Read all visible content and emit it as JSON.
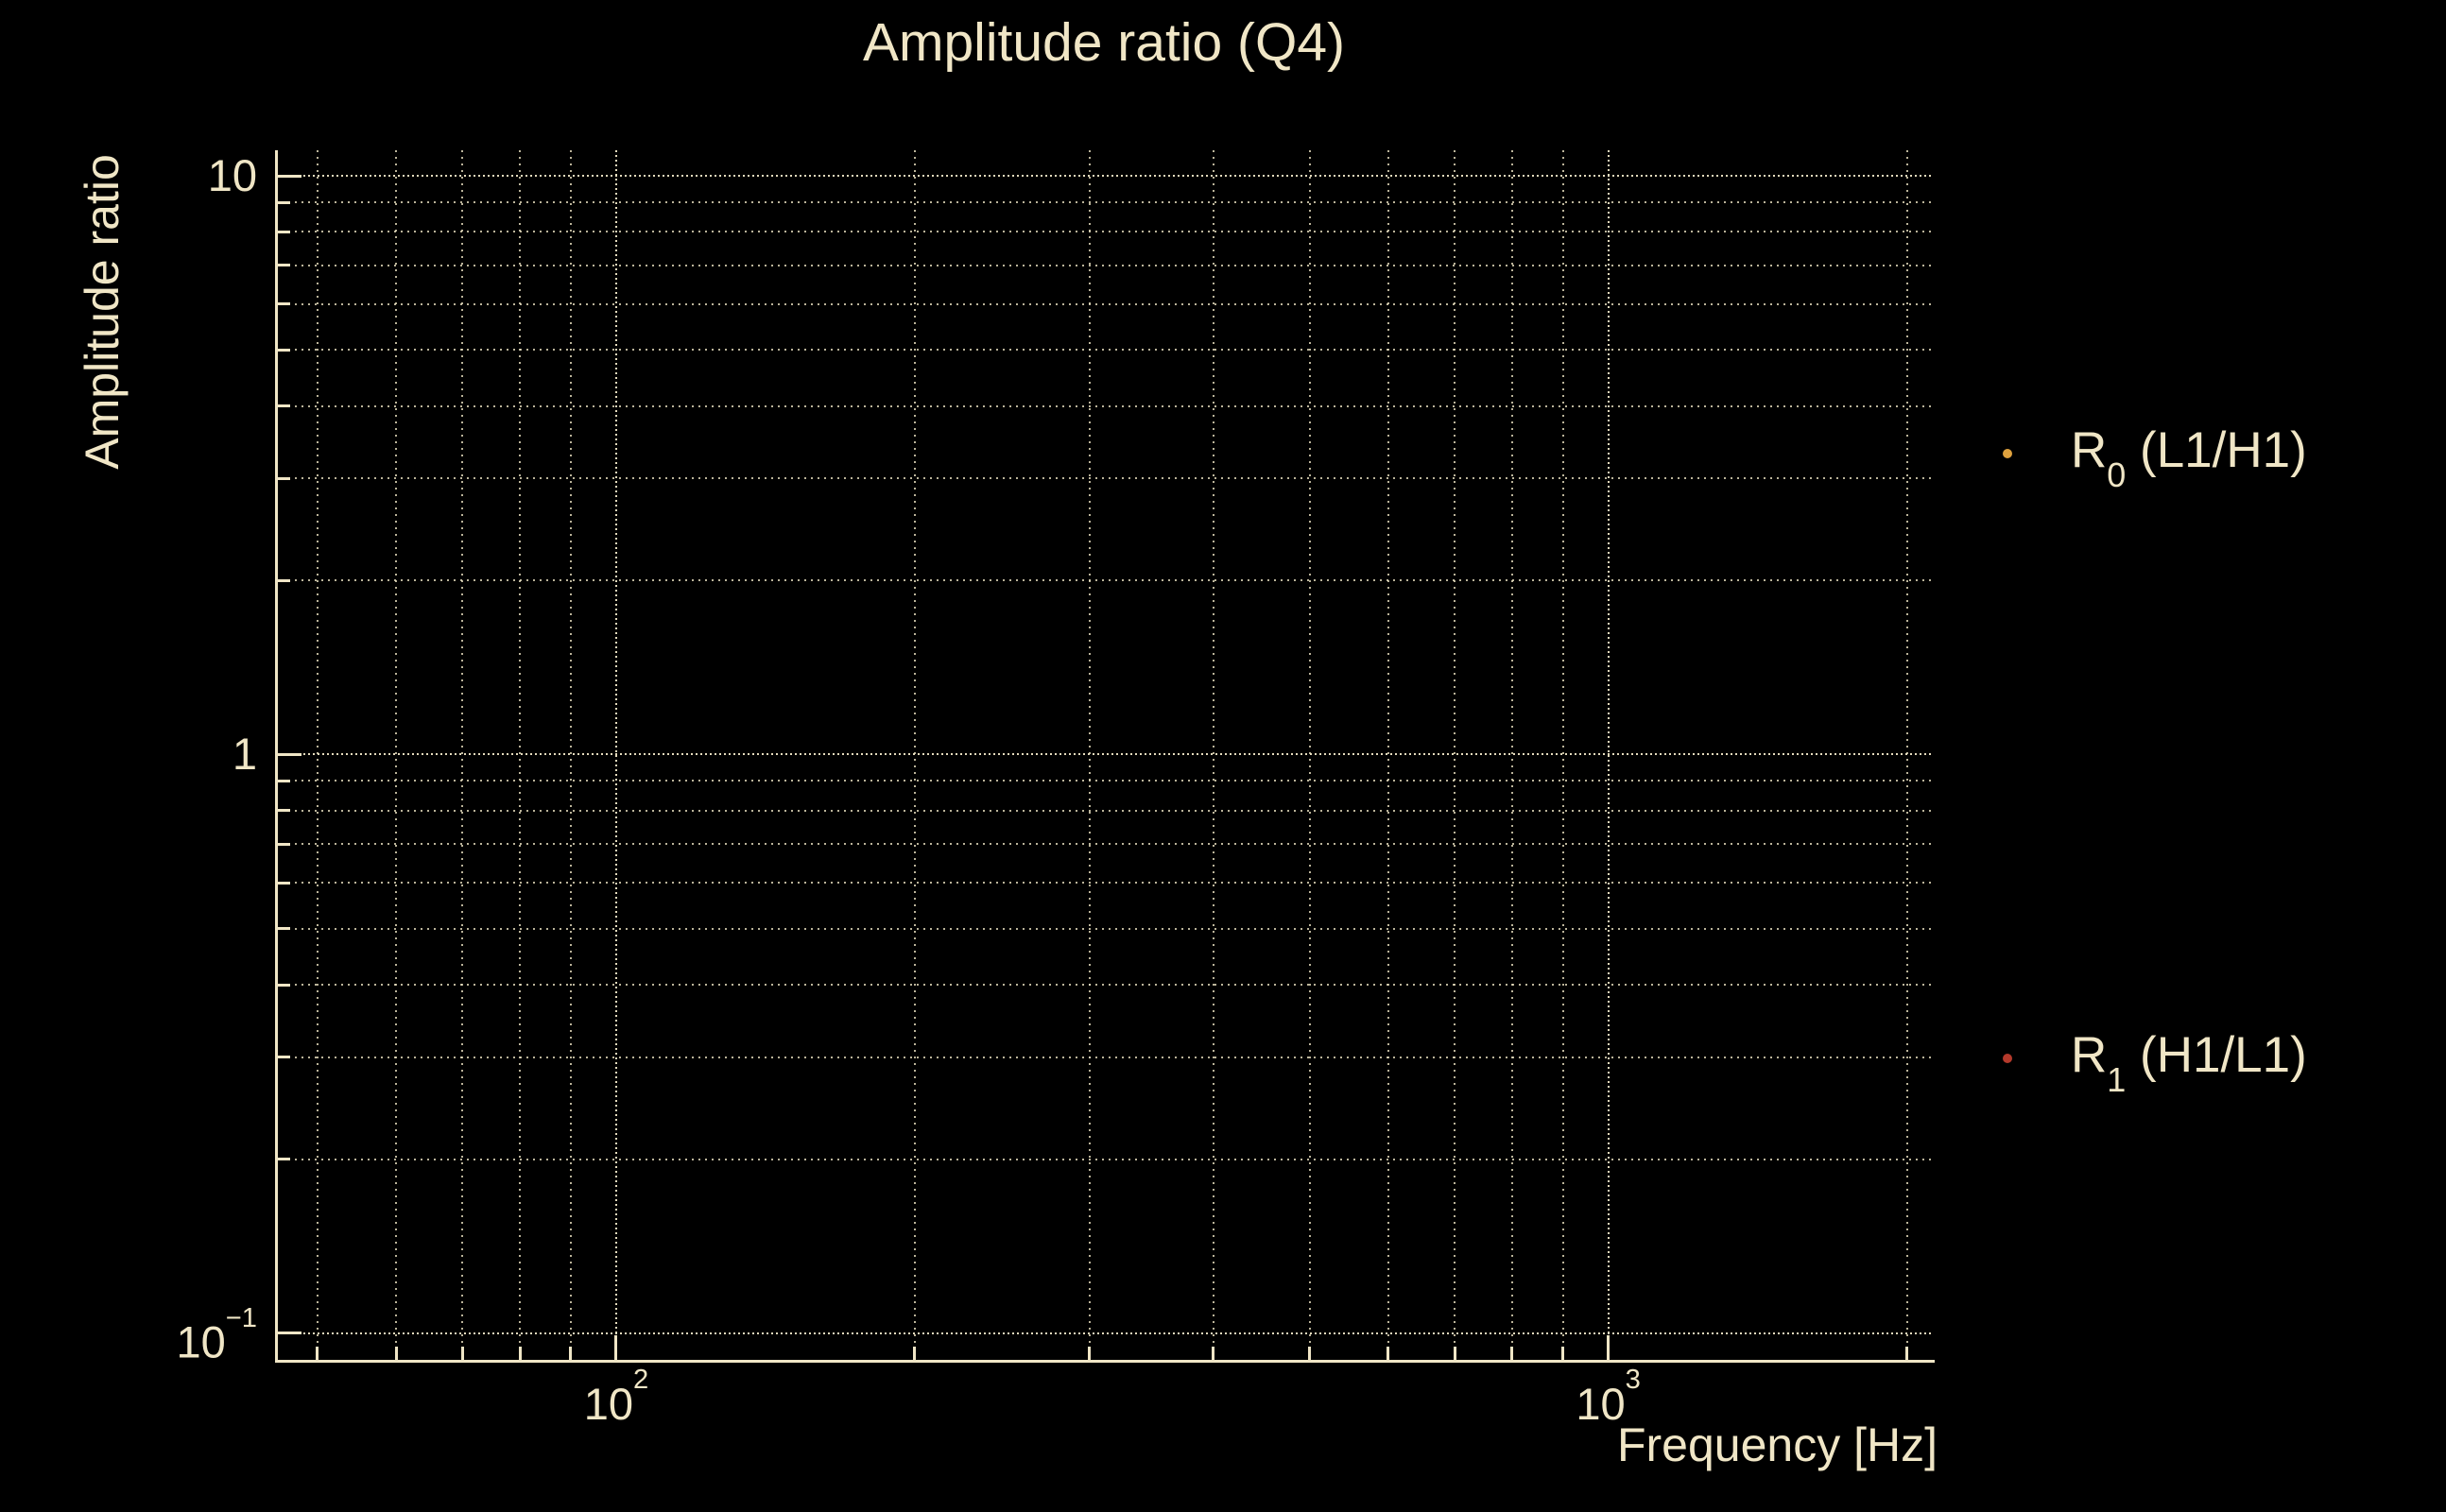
{
  "title": "Amplitude ratio (Q4)",
  "colors": {
    "background": "#000000",
    "text": "#F0E6C6",
    "grid": "#F0E6C6",
    "axis_spine": "#F0E6C6",
    "r0_marker": "#DFA23E",
    "r1_marker": "#B4392B"
  },
  "y_axis": {
    "label": "Amplitude ratio",
    "major_tick_labels": [
      {
        "value": 10,
        "text": "10"
      },
      {
        "value": 1,
        "text": "1"
      },
      {
        "value": 0.1,
        "base": "10",
        "exp": "−1"
      }
    ]
  },
  "x_axis": {
    "label": "Frequency [Hz]",
    "major_tick_labels": [
      {
        "value": 100,
        "base": "10",
        "exp": "2"
      },
      {
        "value": 1000,
        "base": "10",
        "exp": "3"
      }
    ]
  },
  "legend": {
    "entries": [
      {
        "base": "R",
        "sub": "0",
        "rest": " (L1/H1)",
        "marker_color": "#DFA23E"
      },
      {
        "base": "R",
        "sub": "1",
        "rest": " (H1/L1)",
        "marker_color": "#B4392B"
      }
    ]
  },
  "chart_data": {
    "type": "scatter",
    "title": "Amplitude ratio (Q4)",
    "xlabel": "Frequency [Hz]",
    "ylabel": "Amplitude ratio",
    "x_scale": "log",
    "y_scale": "log",
    "xlim": [
      45.3,
      2124
    ],
    "ylim": [
      0.0893,
      11.07
    ],
    "x_major_ticks": [
      100,
      1000
    ],
    "x_minor_ticks": [
      50,
      60,
      70,
      80,
      90,
      200,
      300,
      400,
      500,
      600,
      700,
      800,
      900,
      2000
    ],
    "y_major_ticks": [
      10,
      1,
      0.1
    ],
    "y_minor_ticks": [
      9,
      8,
      7,
      6,
      5,
      4,
      3,
      2,
      0.9,
      0.8,
      0.7,
      0.6,
      0.5,
      0.4,
      0.3,
      0.2
    ],
    "grid": true,
    "grid_style": "dotted",
    "legend_position": "right-outside",
    "series": [
      {
        "name": "R0 (L1/H1)",
        "marker": "dot",
        "marker_color": "#DFA23E",
        "x": [],
        "y": []
      },
      {
        "name": "R1 (H1/L1)",
        "marker": "dot",
        "marker_color": "#B4392B",
        "x": [],
        "y": []
      }
    ]
  }
}
